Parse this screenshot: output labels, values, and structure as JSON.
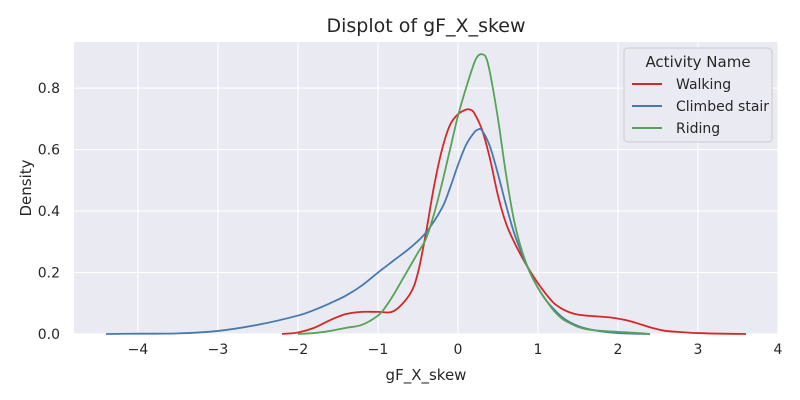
{
  "chart_data": {
    "type": "line",
    "title": "Displot of gF_X_skew",
    "xlabel": "gF_X_skew",
    "ylabel": "Density",
    "xlim": [
      -4.8,
      4.0
    ],
    "ylim": [
      0,
      0.95
    ],
    "xticks": [
      -4,
      -3,
      -2,
      -1,
      0,
      1,
      2,
      3,
      4
    ],
    "yticks": [
      0.0,
      0.2,
      0.4,
      0.6,
      0.8
    ],
    "xtick_labels": [
      "−4",
      "−3",
      "−2",
      "−1",
      "0",
      "1",
      "2",
      "3",
      "4"
    ],
    "ytick_labels": [
      "0.0",
      "0.2",
      "0.4",
      "0.6",
      "0.8"
    ],
    "grid": true,
    "background": "#eaeaf2",
    "legend": {
      "title": "Activity Name",
      "position": "top-right"
    },
    "series": [
      {
        "name": "Walking",
        "color": "#d62728",
        "x": [
          -2.2,
          -2.0,
          -1.8,
          -1.6,
          -1.4,
          -1.2,
          -1.0,
          -0.8,
          -0.6,
          -0.5,
          -0.4,
          -0.3,
          -0.2,
          -0.1,
          0.0,
          0.1,
          0.15,
          0.2,
          0.3,
          0.4,
          0.5,
          0.6,
          0.7,
          0.8,
          0.9,
          1.0,
          1.1,
          1.2,
          1.3,
          1.4,
          1.5,
          1.6,
          1.7,
          1.8,
          1.9,
          2.0,
          2.1,
          2.2,
          2.3,
          2.4,
          2.5,
          2.6,
          2.8,
          3.0,
          3.3,
          3.6
        ],
        "y": [
          0.0,
          0.005,
          0.02,
          0.045,
          0.065,
          0.072,
          0.072,
          0.075,
          0.13,
          0.2,
          0.33,
          0.48,
          0.6,
          0.68,
          0.715,
          0.73,
          0.73,
          0.72,
          0.665,
          0.57,
          0.45,
          0.36,
          0.3,
          0.25,
          0.205,
          0.165,
          0.13,
          0.1,
          0.082,
          0.07,
          0.063,
          0.06,
          0.058,
          0.056,
          0.054,
          0.05,
          0.045,
          0.038,
          0.03,
          0.022,
          0.015,
          0.01,
          0.006,
          0.003,
          0.001,
          0.0
        ]
      },
      {
        "name": "Climbed stair",
        "color": "#4878b0",
        "x": [
          -4.4,
          -4.0,
          -3.5,
          -3.0,
          -2.5,
          -2.0,
          -1.8,
          -1.6,
          -1.4,
          -1.2,
          -1.0,
          -0.8,
          -0.6,
          -0.4,
          -0.2,
          -0.1,
          0.0,
          0.1,
          0.2,
          0.25,
          0.3,
          0.4,
          0.5,
          0.6,
          0.7,
          0.8,
          0.9,
          1.0,
          1.1,
          1.2,
          1.3,
          1.4,
          1.5,
          1.6,
          1.8,
          2.0,
          2.2,
          2.4
        ],
        "y": [
          0.0,
          0.001,
          0.002,
          0.01,
          0.03,
          0.06,
          0.078,
          0.1,
          0.125,
          0.158,
          0.2,
          0.24,
          0.28,
          0.33,
          0.41,
          0.475,
          0.55,
          0.615,
          0.655,
          0.665,
          0.662,
          0.61,
          0.52,
          0.42,
          0.33,
          0.26,
          0.2,
          0.15,
          0.11,
          0.08,
          0.055,
          0.038,
          0.026,
          0.018,
          0.008,
          0.003,
          0.001,
          0.0
        ]
      },
      {
        "name": "Riding",
        "color": "#55a357",
        "x": [
          -2.0,
          -1.8,
          -1.6,
          -1.4,
          -1.2,
          -1.0,
          -0.9,
          -0.8,
          -0.7,
          -0.6,
          -0.5,
          -0.4,
          -0.3,
          -0.2,
          -0.1,
          0.0,
          0.1,
          0.2,
          0.25,
          0.3,
          0.35,
          0.4,
          0.5,
          0.6,
          0.7,
          0.8,
          0.9,
          1.0,
          1.1,
          1.2,
          1.3,
          1.4,
          1.5,
          1.6,
          1.8,
          2.0,
          2.2,
          2.4
        ],
        "y": [
          0.0,
          0.003,
          0.01,
          0.02,
          0.03,
          0.06,
          0.09,
          0.13,
          0.175,
          0.22,
          0.265,
          0.31,
          0.39,
          0.49,
          0.6,
          0.71,
          0.8,
          0.88,
          0.905,
          0.91,
          0.9,
          0.85,
          0.7,
          0.52,
          0.37,
          0.27,
          0.2,
          0.15,
          0.11,
          0.075,
          0.05,
          0.035,
          0.023,
          0.016,
          0.01,
          0.007,
          0.004,
          0.0
        ]
      }
    ]
  }
}
